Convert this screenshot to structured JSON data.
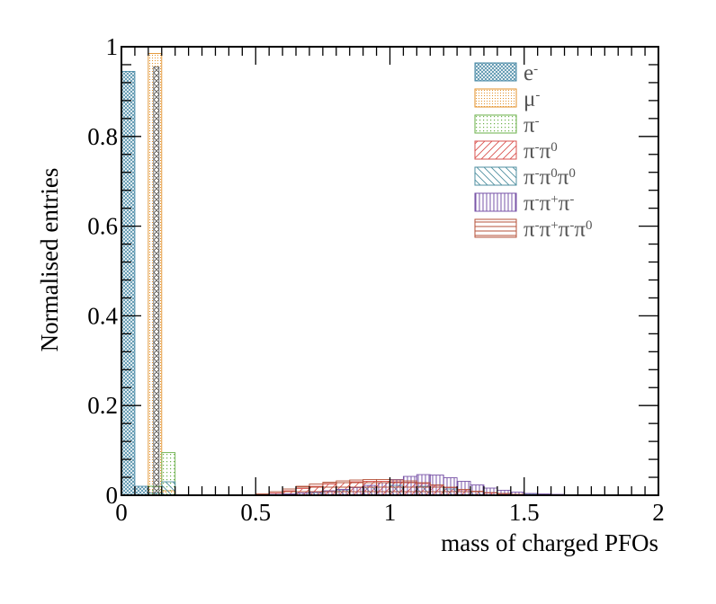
{
  "chart_data": {
    "type": "bar",
    "xlabel": "mass of charged PFOs",
    "ylabel": "Normalised entries",
    "xlim": [
      0,
      2
    ],
    "ylim": [
      0,
      1
    ],
    "x_ticks": [
      "0",
      "0.5",
      "1",
      "1.5",
      "2"
    ],
    "y_ticks": [
      "0",
      "0.2",
      "0.4",
      "0.6",
      "0.8",
      "1"
    ],
    "bin_width": 0.05,
    "legend_position": "top-right",
    "grid": false,
    "series": [
      {
        "name": "e-",
        "base": "e",
        "sup": "-",
        "color": "#4a8aa6",
        "pattern": "crosshatch-dense",
        "bins": [
          [
            0.0,
            0.945
          ],
          [
            0.05,
            0.02
          ]
        ]
      },
      {
        "name": "μ-",
        "base": "μ",
        "sup": "-",
        "color": "#e3912a",
        "pattern": "dots-dense",
        "bins": [
          [
            0.1,
            0.985
          ],
          [
            0.15,
            0.01
          ]
        ]
      },
      {
        "name": "π-",
        "base": "π",
        "sup": "-",
        "color": "#6bb04a",
        "pattern": "dots",
        "bins": [
          [
            0.1,
            0.02
          ],
          [
            0.15,
            0.095
          ]
        ]
      },
      {
        "name": "π-π0",
        "base": "π-π0",
        "sup": "",
        "color": "#d9534f",
        "pattern": "diag-right",
        "bins": [
          [
            0.55,
            0.005
          ],
          [
            0.6,
            0.01
          ],
          [
            0.65,
            0.015
          ],
          [
            0.7,
            0.02
          ],
          [
            0.75,
            0.025
          ],
          [
            0.8,
            0.028
          ],
          [
            0.85,
            0.03
          ],
          [
            0.9,
            0.031
          ],
          [
            0.95,
            0.031
          ],
          [
            1.0,
            0.03
          ],
          [
            1.05,
            0.029
          ],
          [
            1.1,
            0.026
          ],
          [
            1.15,
            0.022
          ],
          [
            1.2,
            0.017
          ],
          [
            1.25,
            0.012
          ],
          [
            1.3,
            0.008
          ],
          [
            1.35,
            0.005
          ],
          [
            1.4,
            0.003
          ],
          [
            1.45,
            0.002
          ],
          [
            1.5,
            0.001
          ]
        ]
      },
      {
        "name": "π-π0π0",
        "base": "π-π0π0",
        "sup": "",
        "color": "#4f8fa0",
        "pattern": "diag-left",
        "bins": [
          [
            0.0,
            0.0
          ],
          [
            0.1,
            0.005
          ],
          [
            0.15,
            0.03
          ],
          [
            0.7,
            0.006
          ],
          [
            0.8,
            0.012
          ],
          [
            0.9,
            0.018
          ],
          [
            1.0,
            0.022
          ],
          [
            1.1,
            0.02
          ],
          [
            1.2,
            0.014
          ],
          [
            1.3,
            0.008
          ],
          [
            1.4,
            0.004
          ],
          [
            1.5,
            0.002
          ]
        ]
      },
      {
        "name": "π-π+π-",
        "base": "π-π+π-",
        "sup": "",
        "color": "#7a55a8",
        "pattern": "vertical",
        "bins": [
          [
            0.5,
            0.001
          ],
          [
            0.55,
            0.002
          ],
          [
            0.6,
            0.003
          ],
          [
            0.65,
            0.005
          ],
          [
            0.7,
            0.007
          ],
          [
            0.75,
            0.01
          ],
          [
            0.8,
            0.013
          ],
          [
            0.85,
            0.017
          ],
          [
            0.9,
            0.022
          ],
          [
            0.95,
            0.028
          ],
          [
            1.0,
            0.035
          ],
          [
            1.05,
            0.042
          ],
          [
            1.1,
            0.046
          ],
          [
            1.15,
            0.045
          ],
          [
            1.2,
            0.039
          ],
          [
            1.25,
            0.031
          ],
          [
            1.3,
            0.023
          ],
          [
            1.35,
            0.016
          ],
          [
            1.4,
            0.011
          ],
          [
            1.45,
            0.007
          ],
          [
            1.5,
            0.004
          ],
          [
            1.55,
            0.003
          ],
          [
            1.6,
            0.002
          ],
          [
            1.65,
            0.001
          ]
        ]
      },
      {
        "name": "π-π+π-π0",
        "base": "π-π+π-π0",
        "sup": "",
        "color": "#b5523a",
        "pattern": "horizontal",
        "bins": [
          [
            0.45,
            0.001
          ],
          [
            0.5,
            0.003
          ],
          [
            0.55,
            0.008
          ],
          [
            0.6,
            0.014
          ],
          [
            0.65,
            0.02
          ],
          [
            0.7,
            0.025
          ],
          [
            0.75,
            0.029
          ],
          [
            0.8,
            0.032
          ],
          [
            0.85,
            0.034
          ],
          [
            0.9,
            0.035
          ],
          [
            0.95,
            0.035
          ],
          [
            1.0,
            0.034
          ],
          [
            1.05,
            0.032
          ],
          [
            1.1,
            0.028
          ],
          [
            1.15,
            0.023
          ],
          [
            1.2,
            0.018
          ],
          [
            1.25,
            0.013
          ],
          [
            1.3,
            0.009
          ],
          [
            1.35,
            0.006
          ],
          [
            1.4,
            0.004
          ],
          [
            1.45,
            0.002
          ],
          [
            1.5,
            0.001
          ]
        ]
      }
    ]
  }
}
